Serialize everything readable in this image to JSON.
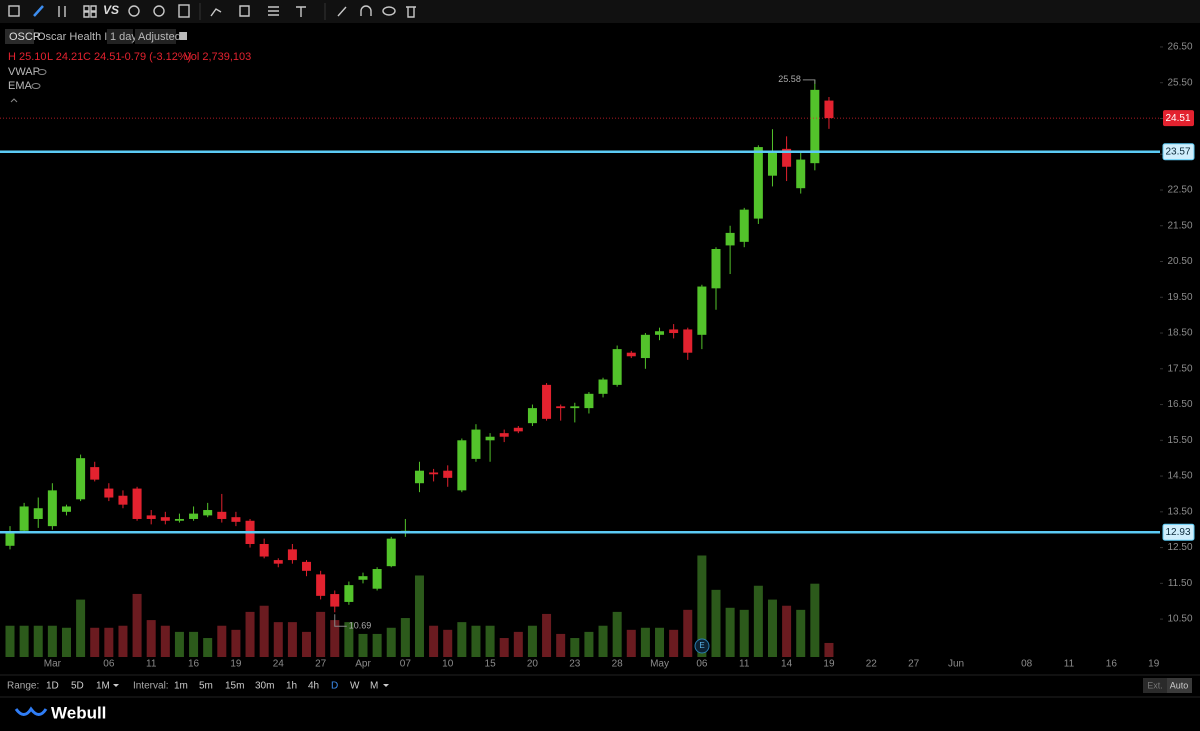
{
  "toolbar": {
    "vs": "VS"
  },
  "header": {
    "symbol": "OSCR",
    "name": "Oscar Health Inc",
    "period": "1 day",
    "adjustment": "Adjusted"
  },
  "quote": [
    "H 25.10",
    "L 24.21",
    "C 24.51",
    "-0.79 (-3.12%)",
    "Vol 2,739,103"
  ],
  "indicators": [
    "VWAP",
    "EMA"
  ],
  "earnings_marker": "E",
  "chart_data": {
    "type": "candlestick",
    "categories": [
      null,
      null,
      null,
      "Mar",
      null,
      null,
      null,
      "06",
      null,
      null,
      "11",
      null,
      null,
      "16",
      null,
      null,
      "19",
      null,
      null,
      "24",
      null,
      null,
      "27",
      null,
      null,
      "Apr",
      null,
      null,
      "07",
      null,
      null,
      "10",
      null,
      null,
      "15",
      null,
      null,
      "20",
      null,
      null,
      "23",
      null,
      null,
      "28",
      null,
      null,
      "May",
      null,
      null,
      "06",
      null,
      null,
      "11",
      null,
      null,
      "14",
      null,
      null,
      "19",
      null,
      null,
      "22",
      null,
      null,
      "27",
      null,
      null,
      "Jun",
      null,
      null,
      null,
      null,
      "08",
      null,
      null,
      "11",
      null,
      null,
      "16",
      null,
      null,
      "19"
    ],
    "open": [
      12.55,
      12.97,
      13.3,
      13.1,
      13.5,
      13.85,
      14.75,
      14.15,
      13.95,
      14.15,
      13.4,
      13.35,
      13.25,
      13.3,
      13.4,
      13.5,
      13.35,
      13.25,
      12.6,
      12.15,
      12.45,
      12.1,
      11.75,
      11.2,
      10.98,
      11.6,
      11.35,
      11.98,
      12.93,
      14.3,
      14.6,
      14.65,
      14.1,
      14.98,
      15.5,
      15.7,
      15.85,
      15.98,
      17.05,
      16.45,
      16.4,
      16.4,
      16.8,
      17.05,
      17.95,
      17.8,
      18.45,
      18.6,
      18.6,
      18.45,
      19.75,
      20.95,
      21.05,
      21.7,
      22.9,
      23.65,
      22.55,
      23.25,
      25.0,
      null,
      null,
      null,
      null,
      null,
      null,
      null,
      null,
      null,
      null,
      null,
      null,
      null,
      null,
      null,
      null,
      null,
      null,
      null,
      null,
      null,
      null,
      null
    ],
    "high": [
      13.1,
      13.75,
      13.9,
      14.3,
      13.7,
      15.1,
      14.9,
      14.3,
      14.1,
      14.2,
      13.55,
      13.5,
      13.45,
      13.65,
      13.75,
      14.0,
      13.5,
      13.3,
      12.75,
      12.2,
      12.6,
      12.15,
      11.85,
      11.3,
      11.55,
      11.8,
      11.95,
      12.8,
      13.3,
      14.9,
      14.7,
      14.8,
      15.55,
      15.95,
      15.7,
      15.8,
      15.9,
      16.5,
      17.1,
      16.5,
      16.55,
      16.85,
      17.25,
      18.15,
      18.0,
      18.5,
      18.65,
      18.75,
      18.65,
      19.85,
      20.9,
      21.5,
      22.0,
      23.75,
      24.2,
      24.0,
      23.6,
      25.58,
      25.1,
      null,
      null,
      null,
      null,
      null,
      null,
      null,
      null,
      null,
      null,
      null,
      null,
      null,
      null,
      null,
      null,
      null,
      null,
      null,
      null,
      null,
      null,
      null
    ],
    "low": [
      12.45,
      12.9,
      13.05,
      13.0,
      13.4,
      13.8,
      14.35,
      13.8,
      13.6,
      13.25,
      13.15,
      13.15,
      13.2,
      13.25,
      13.35,
      13.2,
      13.1,
      12.5,
      12.2,
      11.95,
      12.05,
      11.7,
      11.05,
      10.69,
      10.9,
      11.5,
      11.3,
      11.95,
      12.8,
      14.05,
      14.35,
      14.2,
      14.05,
      14.9,
      14.9,
      15.45,
      15.7,
      15.9,
      16.05,
      16.05,
      16.0,
      16.25,
      16.7,
      17.0,
      17.8,
      17.5,
      18.3,
      18.35,
      17.75,
      18.05,
      19.15,
      20.15,
      20.9,
      21.55,
      22.6,
      22.75,
      22.4,
      23.05,
      24.21,
      null,
      null,
      null,
      null,
      null,
      null,
      null,
      null,
      null,
      null,
      null,
      null,
      null,
      null,
      null,
      null,
      null,
      null,
      null,
      null,
      null,
      null,
      null
    ],
    "close": [
      12.93,
      13.65,
      13.6,
      14.1,
      13.65,
      15.0,
      14.4,
      13.9,
      13.7,
      13.3,
      13.3,
      13.25,
      13.3,
      13.45,
      13.55,
      13.3,
      13.22,
      12.6,
      12.25,
      12.05,
      12.15,
      11.85,
      11.15,
      10.85,
      11.45,
      11.7,
      11.9,
      12.75,
      12.97,
      14.65,
      14.55,
      14.45,
      15.5,
      15.8,
      15.6,
      15.6,
      15.75,
      16.4,
      16.1,
      16.4,
      16.45,
      16.8,
      17.2,
      18.05,
      17.85,
      18.45,
      18.55,
      18.5,
      17.95,
      19.8,
      20.85,
      21.3,
      21.95,
      23.7,
      23.6,
      23.15,
      23.35,
      25.3,
      24.51,
      null,
      null,
      null,
      null,
      null,
      null,
      null,
      null,
      null,
      null,
      null,
      null,
      null,
      null,
      null,
      null,
      null,
      null,
      null,
      null,
      null,
      null,
      null
    ],
    "volume": [
      6100000,
      6100000,
      6100000,
      6100000,
      5700000,
      11200000,
      5700000,
      5700000,
      6100000,
      12300000,
      7200000,
      6100000,
      4900000,
      4900000,
      3700000,
      6100000,
      5300000,
      8800000,
      10000000,
      6800000,
      6800000,
      4900000,
      8800000,
      7200000,
      6800000,
      4500000,
      4500000,
      5700000,
      7600000,
      15900000,
      6100000,
      5300000,
      6800000,
      6100000,
      6100000,
      3700000,
      4900000,
      6100000,
      8400000,
      4500000,
      3700000,
      4900000,
      6100000,
      8800000,
      5300000,
      5700000,
      5700000,
      5300000,
      9200000,
      19800000,
      13100000,
      9600000,
      9200000,
      13900000,
      11200000,
      10000000,
      9200000,
      14300000,
      2739103,
      null,
      null,
      null,
      null,
      null,
      null,
      null,
      null,
      null,
      null,
      null,
      null,
      null,
      null,
      null,
      null,
      null,
      null,
      null,
      null,
      null,
      null,
      null
    ],
    "colors": {
      "up": "#53c32b",
      "down": "#e3222f"
    },
    "volume_colors": {
      "up": "#2c5a1b",
      "down": "#6b1b20"
    },
    "ylim": [
      9.44,
      27.03
    ],
    "yticks": [
      {
        "value": 26.5,
        "label": "26.50"
      },
      {
        "value": 25.5,
        "label": "25.50"
      },
      {
        "value": 24.5,
        "label": "24.50"
      },
      {
        "value": 23.5,
        "label": "23.50"
      },
      {
        "value": 22.5,
        "label": "22.50"
      },
      {
        "value": 21.5,
        "label": "21.50"
      },
      {
        "value": 20.5,
        "label": "20.50"
      },
      {
        "value": 19.5,
        "label": "19.50"
      },
      {
        "value": 18.5,
        "label": "18.50"
      },
      {
        "value": 17.5,
        "label": "17.50"
      },
      {
        "value": 16.5,
        "label": "16.50"
      },
      {
        "value": 15.5,
        "label": "15.50"
      },
      {
        "value": 14.5,
        "label": "14.50"
      },
      {
        "value": 13.5,
        "label": "13.50"
      },
      {
        "value": 12.5,
        "label": "12.50"
      },
      {
        "value": 11.5,
        "label": "11.50"
      },
      {
        "value": 10.5,
        "label": "10.50"
      }
    ],
    "volume_ylim": [
      0,
      122700000
    ],
    "hlines": {
      "values": [
        23.57,
        12.93
      ],
      "color": "#5ccbf5"
    },
    "last_price_color": "#e3222f"
  },
  "range": {
    "label": "Range:",
    "options": [
      "1D",
      "5D",
      "1M"
    ]
  },
  "interval": {
    "label": "Interval:",
    "options": [
      "1m",
      "5m",
      "15m",
      "30m",
      "1h",
      "4h",
      "D",
      "W",
      "M"
    ],
    "selected": "D"
  },
  "session": [
    "Ext.",
    "Auto"
  ],
  "brand": "Webull"
}
